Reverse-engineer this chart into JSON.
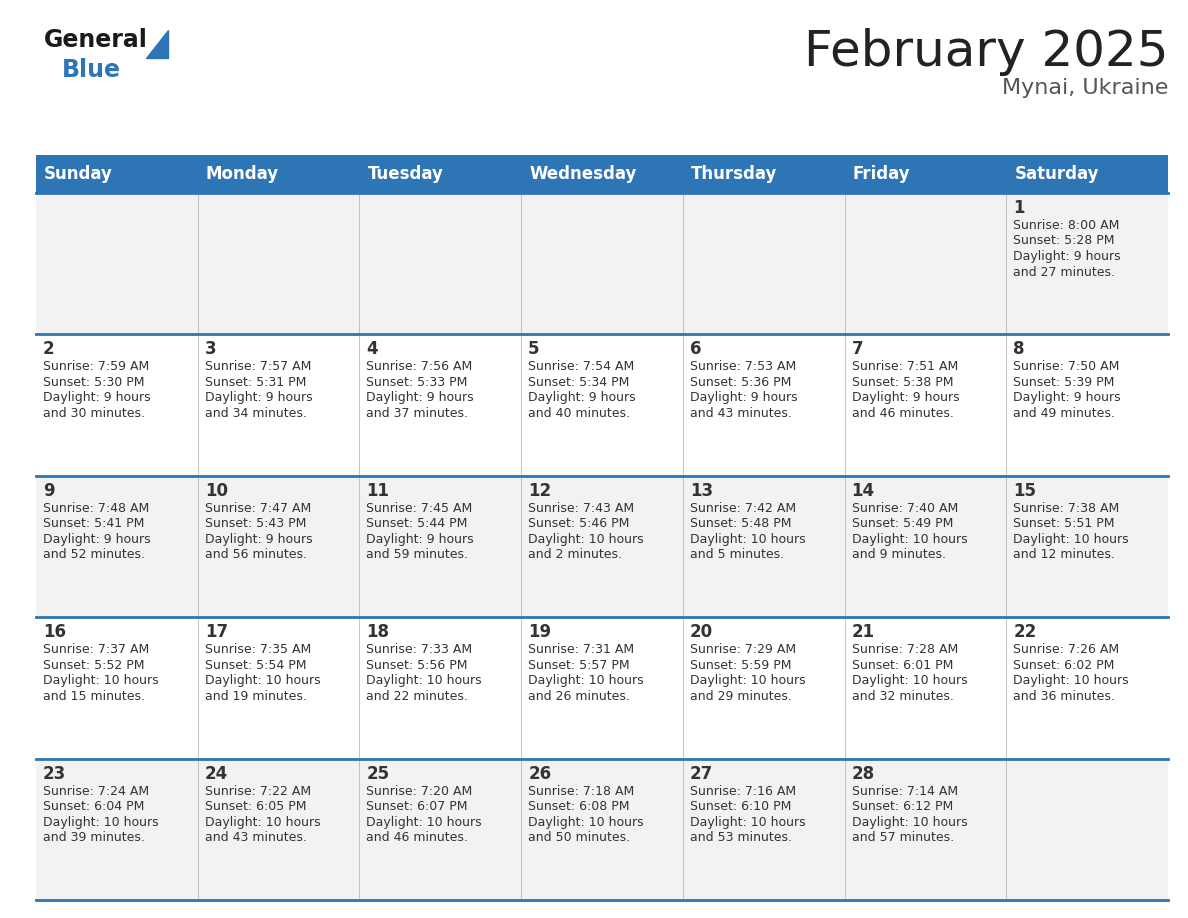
{
  "title": "February 2025",
  "subtitle": "Mynai, Ukraine",
  "days_of_week": [
    "Sunday",
    "Monday",
    "Tuesday",
    "Wednesday",
    "Thursday",
    "Friday",
    "Saturday"
  ],
  "header_bg": "#2E75B6",
  "header_text_color": "#FFFFFF",
  "row_bg_light": "#F2F2F2",
  "row_bg_white": "#FFFFFF",
  "cell_border_color": "#2E75B6",
  "day_num_color": "#333333",
  "info_text_color": "#333333",
  "title_color": "#222222",
  "subtitle_color": "#555555",
  "generalblue_black": "#1a1a1a",
  "generalblue_blue": "#2E75B6",
  "calendar_data": [
    [
      {
        "day": null,
        "sunrise": null,
        "sunset": null,
        "daylight": null
      },
      {
        "day": null,
        "sunrise": null,
        "sunset": null,
        "daylight": null
      },
      {
        "day": null,
        "sunrise": null,
        "sunset": null,
        "daylight": null
      },
      {
        "day": null,
        "sunrise": null,
        "sunset": null,
        "daylight": null
      },
      {
        "day": null,
        "sunrise": null,
        "sunset": null,
        "daylight": null
      },
      {
        "day": null,
        "sunrise": null,
        "sunset": null,
        "daylight": null
      },
      {
        "day": 1,
        "sunrise": "8:00 AM",
        "sunset": "5:28 PM",
        "daylight": "9 hours\nand 27 minutes."
      }
    ],
    [
      {
        "day": 2,
        "sunrise": "7:59 AM",
        "sunset": "5:30 PM",
        "daylight": "9 hours\nand 30 minutes."
      },
      {
        "day": 3,
        "sunrise": "7:57 AM",
        "sunset": "5:31 PM",
        "daylight": "9 hours\nand 34 minutes."
      },
      {
        "day": 4,
        "sunrise": "7:56 AM",
        "sunset": "5:33 PM",
        "daylight": "9 hours\nand 37 minutes."
      },
      {
        "day": 5,
        "sunrise": "7:54 AM",
        "sunset": "5:34 PM",
        "daylight": "9 hours\nand 40 minutes."
      },
      {
        "day": 6,
        "sunrise": "7:53 AM",
        "sunset": "5:36 PM",
        "daylight": "9 hours\nand 43 minutes."
      },
      {
        "day": 7,
        "sunrise": "7:51 AM",
        "sunset": "5:38 PM",
        "daylight": "9 hours\nand 46 minutes."
      },
      {
        "day": 8,
        "sunrise": "7:50 AM",
        "sunset": "5:39 PM",
        "daylight": "9 hours\nand 49 minutes."
      }
    ],
    [
      {
        "day": 9,
        "sunrise": "7:48 AM",
        "sunset": "5:41 PM",
        "daylight": "9 hours\nand 52 minutes."
      },
      {
        "day": 10,
        "sunrise": "7:47 AM",
        "sunset": "5:43 PM",
        "daylight": "9 hours\nand 56 minutes."
      },
      {
        "day": 11,
        "sunrise": "7:45 AM",
        "sunset": "5:44 PM",
        "daylight": "9 hours\nand 59 minutes."
      },
      {
        "day": 12,
        "sunrise": "7:43 AM",
        "sunset": "5:46 PM",
        "daylight": "10 hours\nand 2 minutes."
      },
      {
        "day": 13,
        "sunrise": "7:42 AM",
        "sunset": "5:48 PM",
        "daylight": "10 hours\nand 5 minutes."
      },
      {
        "day": 14,
        "sunrise": "7:40 AM",
        "sunset": "5:49 PM",
        "daylight": "10 hours\nand 9 minutes."
      },
      {
        "day": 15,
        "sunrise": "7:38 AM",
        "sunset": "5:51 PM",
        "daylight": "10 hours\nand 12 minutes."
      }
    ],
    [
      {
        "day": 16,
        "sunrise": "7:37 AM",
        "sunset": "5:52 PM",
        "daylight": "10 hours\nand 15 minutes."
      },
      {
        "day": 17,
        "sunrise": "7:35 AM",
        "sunset": "5:54 PM",
        "daylight": "10 hours\nand 19 minutes."
      },
      {
        "day": 18,
        "sunrise": "7:33 AM",
        "sunset": "5:56 PM",
        "daylight": "10 hours\nand 22 minutes."
      },
      {
        "day": 19,
        "sunrise": "7:31 AM",
        "sunset": "5:57 PM",
        "daylight": "10 hours\nand 26 minutes."
      },
      {
        "day": 20,
        "sunrise": "7:29 AM",
        "sunset": "5:59 PM",
        "daylight": "10 hours\nand 29 minutes."
      },
      {
        "day": 21,
        "sunrise": "7:28 AM",
        "sunset": "6:01 PM",
        "daylight": "10 hours\nand 32 minutes."
      },
      {
        "day": 22,
        "sunrise": "7:26 AM",
        "sunset": "6:02 PM",
        "daylight": "10 hours\nand 36 minutes."
      }
    ],
    [
      {
        "day": 23,
        "sunrise": "7:24 AM",
        "sunset": "6:04 PM",
        "daylight": "10 hours\nand 39 minutes."
      },
      {
        "day": 24,
        "sunrise": "7:22 AM",
        "sunset": "6:05 PM",
        "daylight": "10 hours\nand 43 minutes."
      },
      {
        "day": 25,
        "sunrise": "7:20 AM",
        "sunset": "6:07 PM",
        "daylight": "10 hours\nand 46 minutes."
      },
      {
        "day": 26,
        "sunrise": "7:18 AM",
        "sunset": "6:08 PM",
        "daylight": "10 hours\nand 50 minutes."
      },
      {
        "day": 27,
        "sunrise": "7:16 AM",
        "sunset": "6:10 PM",
        "daylight": "10 hours\nand 53 minutes."
      },
      {
        "day": 28,
        "sunrise": "7:14 AM",
        "sunset": "6:12 PM",
        "daylight": "10 hours\nand 57 minutes."
      },
      {
        "day": null,
        "sunrise": null,
        "sunset": null,
        "daylight": null
      }
    ]
  ]
}
